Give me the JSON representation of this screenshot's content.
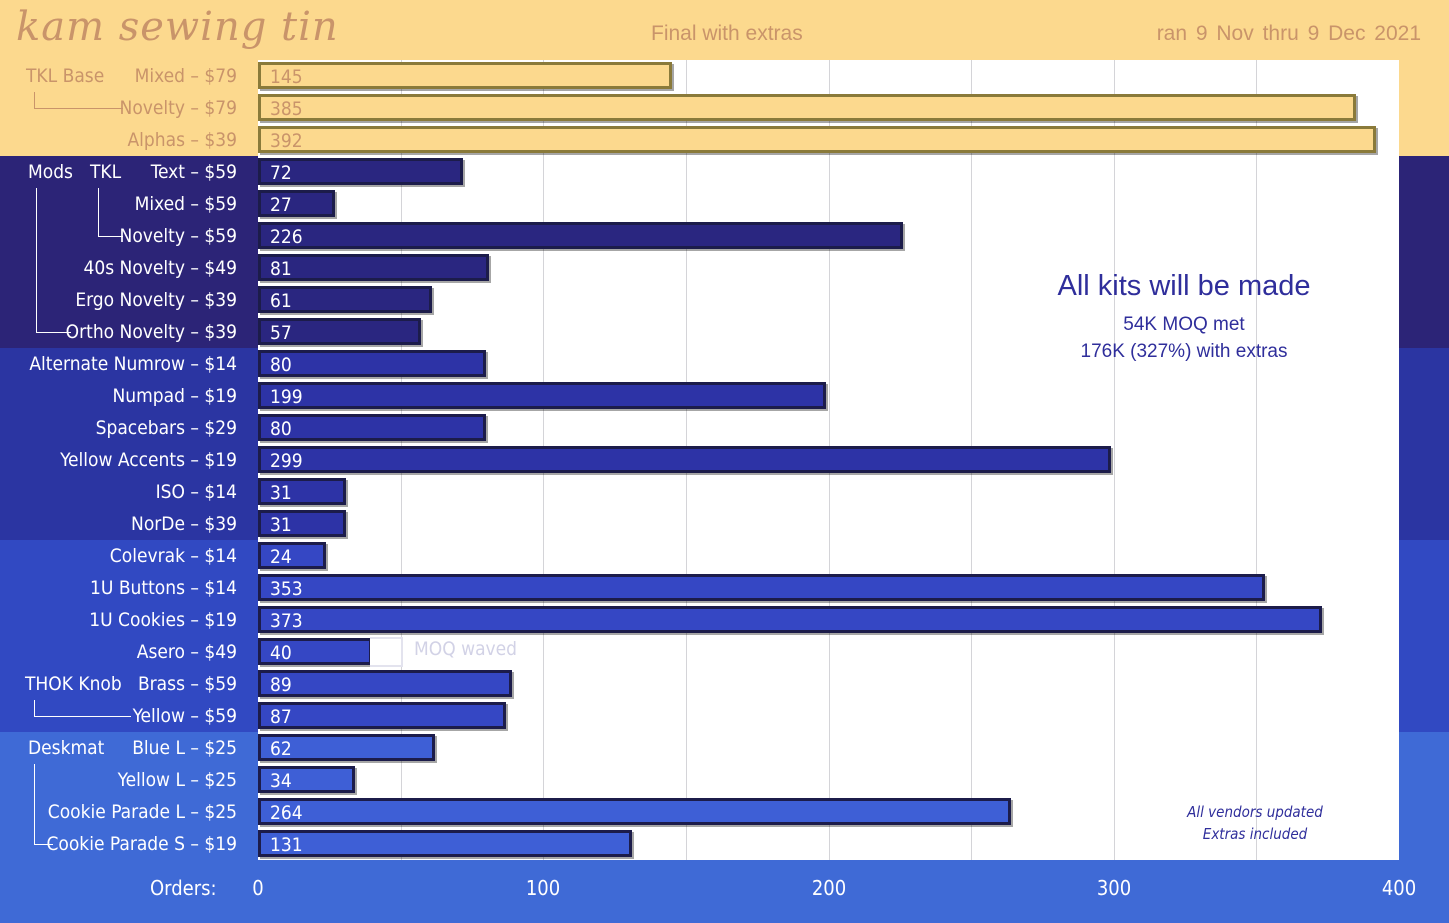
{
  "header": {
    "title": "kam sewing tin",
    "subtitle": "Final with extras",
    "date_range": "ran  9 Nov  thru  9 Dec  2021"
  },
  "annotations": {
    "headline": "All kits will be made",
    "moq_line": "54K MOQ met",
    "extras_line": "176K (327%) with extras",
    "vendors_line": "All vendors updated",
    "extras_included": "Extras included",
    "moq_waved": "MOQ waved"
  },
  "groups": {
    "tkl_base": "TKL Base",
    "mods": "Mods",
    "tkl": "TKL",
    "thok_knob": "THOK Knob",
    "deskmat": "Deskmat"
  },
  "colors": {
    "tier1_band": "#fcd98e",
    "tier1_bar": "#fcd98e",
    "tier2_band": "#2c2477",
    "tier2_bar": "#2a2680",
    "tier3_band": "#2b35a2",
    "tier3_bar": "#2d33a6",
    "tier4_band": "#3149c2",
    "tier4_bar": "#3547c4",
    "tier5_band": "#3f6ad6",
    "tier5_bar": "#3e5fd6",
    "accent_text": "#2f2e9b",
    "title_text": "#c9946a"
  },
  "chart_data": {
    "type": "bar",
    "orientation": "horizontal",
    "xlabel": "Orders:",
    "xlim": [
      0,
      400
    ],
    "xticks": [
      0,
      100,
      200,
      300,
      400
    ],
    "grid": true,
    "categories": [
      "Mixed – $79",
      "Novelty – $79",
      "Alphas – $39",
      "Text – $59",
      "Mixed – $59",
      "Novelty – $59",
      "40s Novelty – $49",
      "Ergo Novelty – $39",
      "Ortho Novelty – $39",
      "Alternate Numrow – $14",
      "Numpad – $19",
      "Spacebars – $29",
      "Yellow Accents – $19",
      "ISO – $14",
      "NorDe – $39",
      "Colevrak – $14",
      "1U Buttons – $14",
      "1U Cookies – $19",
      "Asero – $49",
      "Brass – $59",
      "Yellow – $59",
      "Blue L – $25",
      "Yellow L – $25",
      "Cookie Parade L – $25",
      "Cookie Parade S – $19"
    ],
    "values": [
      145,
      385,
      392,
      72,
      27,
      226,
      81,
      61,
      57,
      80,
      199,
      80,
      299,
      31,
      31,
      24,
      353,
      373,
      40,
      89,
      87,
      62,
      34,
      264,
      131
    ],
    "tiers": [
      1,
      1,
      1,
      2,
      2,
      2,
      2,
      2,
      2,
      3,
      3,
      3,
      3,
      3,
      3,
      4,
      4,
      4,
      4,
      4,
      4,
      5,
      5,
      5,
      5
    ],
    "moq_waved_for": "Asero – $49",
    "moq_waved_level": 52
  }
}
